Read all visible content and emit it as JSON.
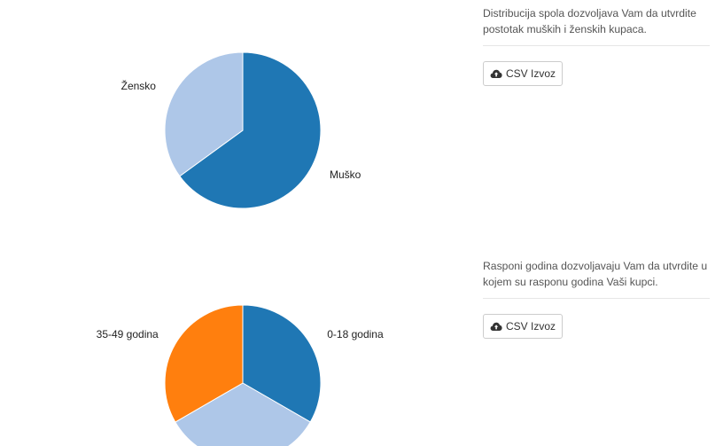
{
  "sections": [
    {
      "description": "Distribucija spola dozvoljava Vam da utvrdite postotak muških i ženskih kupaca.",
      "button_label": "CSV Izvoz",
      "button_icon": "cloud-upload-icon"
    },
    {
      "description": "Rasponi godina dozvoljavaju Vam da utvrdite u kojem su rasponu godina Vaši kupci.",
      "button_label": "CSV Izvoz",
      "button_icon": "cloud-upload-icon"
    }
  ],
  "chart_data": [
    {
      "type": "pie",
      "slices": [
        {
          "label": "Muško",
          "value": 65,
          "color": "#1f77b4"
        },
        {
          "label": "Žensko",
          "value": 35,
          "color": "#aec7e8"
        }
      ],
      "start_angle_deg": 0,
      "direction": "clockwise"
    },
    {
      "type": "pie",
      "slices": [
        {
          "label": "0-18 godina",
          "value": 33.33,
          "color": "#1f77b4"
        },
        {
          "label": "",
          "value": 33.33,
          "color": "#aec7e8"
        },
        {
          "label": "35-49 godina",
          "value": 33.34,
          "color": "#ff7f0e"
        }
      ],
      "start_angle_deg": 0,
      "direction": "clockwise"
    }
  ]
}
